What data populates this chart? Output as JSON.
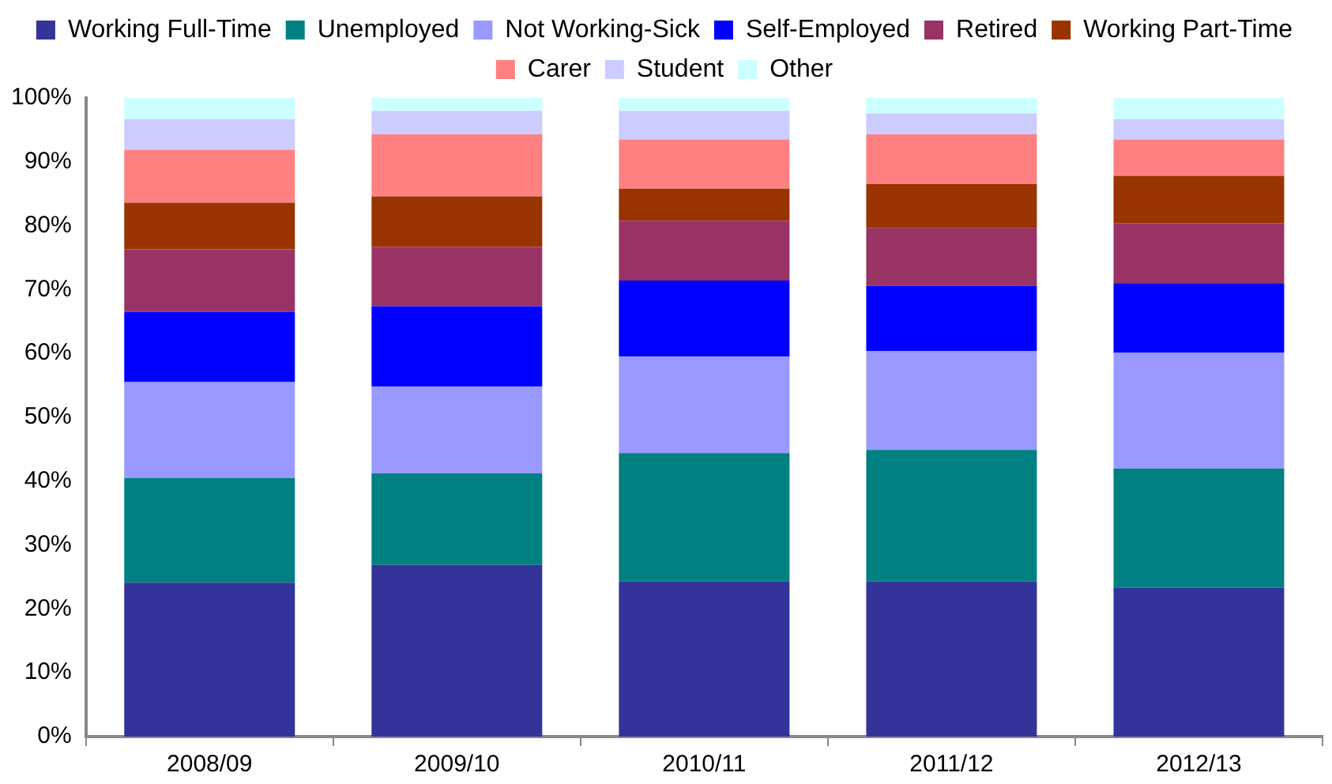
{
  "chart_data": {
    "type": "bar",
    "stacked": true,
    "legend": "top",
    "grid": false,
    "categories": [
      "2008/09",
      "2009/10",
      "2010/11",
      "2011/12",
      "2012/13"
    ],
    "ylim": [
      0,
      100
    ],
    "yticks": [
      {
        "value": 0,
        "label": "0%"
      },
      {
        "value": 10,
        "label": "10%"
      },
      {
        "value": 20,
        "label": "20%"
      },
      {
        "value": 30,
        "label": "30%"
      },
      {
        "value": 40,
        "label": "40%"
      },
      {
        "value": 50,
        "label": "50%"
      },
      {
        "value": 60,
        "label": "60%"
      },
      {
        "value": 70,
        "label": "70%"
      },
      {
        "value": 80,
        "label": "80%"
      },
      {
        "value": 90,
        "label": "90%"
      },
      {
        "value": 100,
        "label": "100%"
      }
    ],
    "series": [
      {
        "name": "Working Full-Time",
        "color": "#333399",
        "values": [
          24.1,
          26.9,
          24.3,
          24.3,
          23.3
        ]
      },
      {
        "name": "Unemployed",
        "color": "#008080",
        "values": [
          16.4,
          14.3,
          20.1,
          20.6,
          18.7
        ]
      },
      {
        "name": "Not Working-Sick",
        "color": "#9999ff",
        "values": [
          15.0,
          13.6,
          15.1,
          15.5,
          18.1
        ]
      },
      {
        "name": "Self-Employed",
        "color": "#0000ff",
        "values": [
          11.0,
          12.6,
          11.9,
          10.2,
          10.9
        ]
      },
      {
        "name": "Retired",
        "color": "#993366",
        "values": [
          9.8,
          9.3,
          9.4,
          9.0,
          9.4
        ]
      },
      {
        "name": "Working Part-Time",
        "color": "#993300",
        "values": [
          7.3,
          7.9,
          5.0,
          6.9,
          7.4
        ]
      },
      {
        "name": "Carer",
        "color": "#ff8080",
        "values": [
          8.3,
          9.7,
          7.7,
          7.8,
          5.7
        ]
      },
      {
        "name": "Student",
        "color": "#ccccff",
        "values": [
          4.8,
          3.7,
          4.5,
          3.3,
          3.2
        ]
      },
      {
        "name": "Other",
        "color": "#ccffff",
        "values": [
          3.3,
          2.0,
          2.0,
          2.4,
          3.3
        ]
      }
    ]
  }
}
